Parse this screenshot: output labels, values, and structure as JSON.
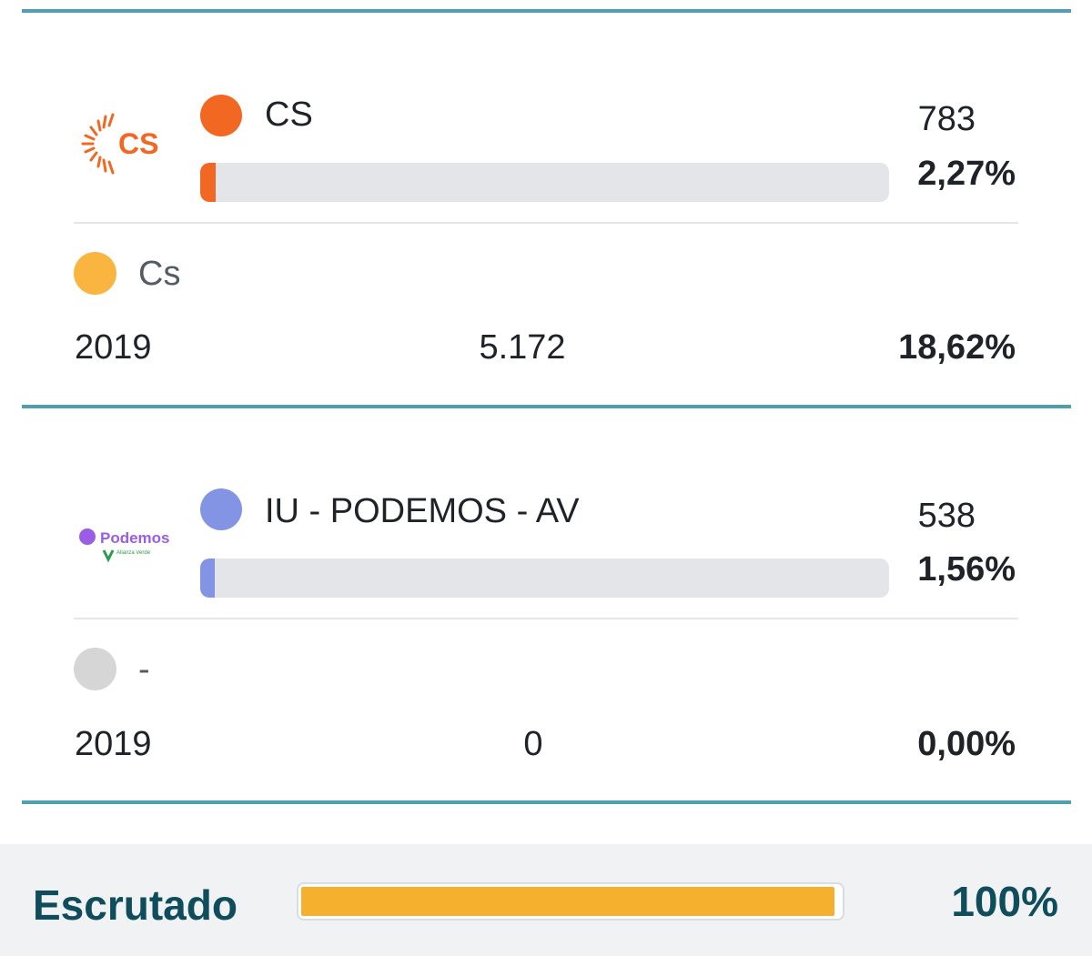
{
  "parties": [
    {
      "logo_text": "CS",
      "color": "#f26722",
      "name": "CS",
      "votes": "783",
      "percent_label": "2,27%",
      "percent": 2.27,
      "prev": {
        "color": "#f9b53f",
        "name": "Cs",
        "year": "2019",
        "votes": "5.172",
        "percent_label": "18,62%"
      }
    },
    {
      "logo_text": "Podemos",
      "logo_sub": "Alianza Verde",
      "color": "#8494e4",
      "name": "IU - PODEMOS - AV",
      "votes": "538",
      "percent_label": "1,56%",
      "percent": 1.56,
      "prev": {
        "color": "#d6d6d6",
        "name": "-",
        "year": "2019",
        "votes": "0",
        "percent_label": "0,00%"
      }
    }
  ],
  "footer": {
    "label": "Escrutado",
    "percent_label": "100%",
    "percent": 100,
    "bar_color": "#f5b12e"
  }
}
